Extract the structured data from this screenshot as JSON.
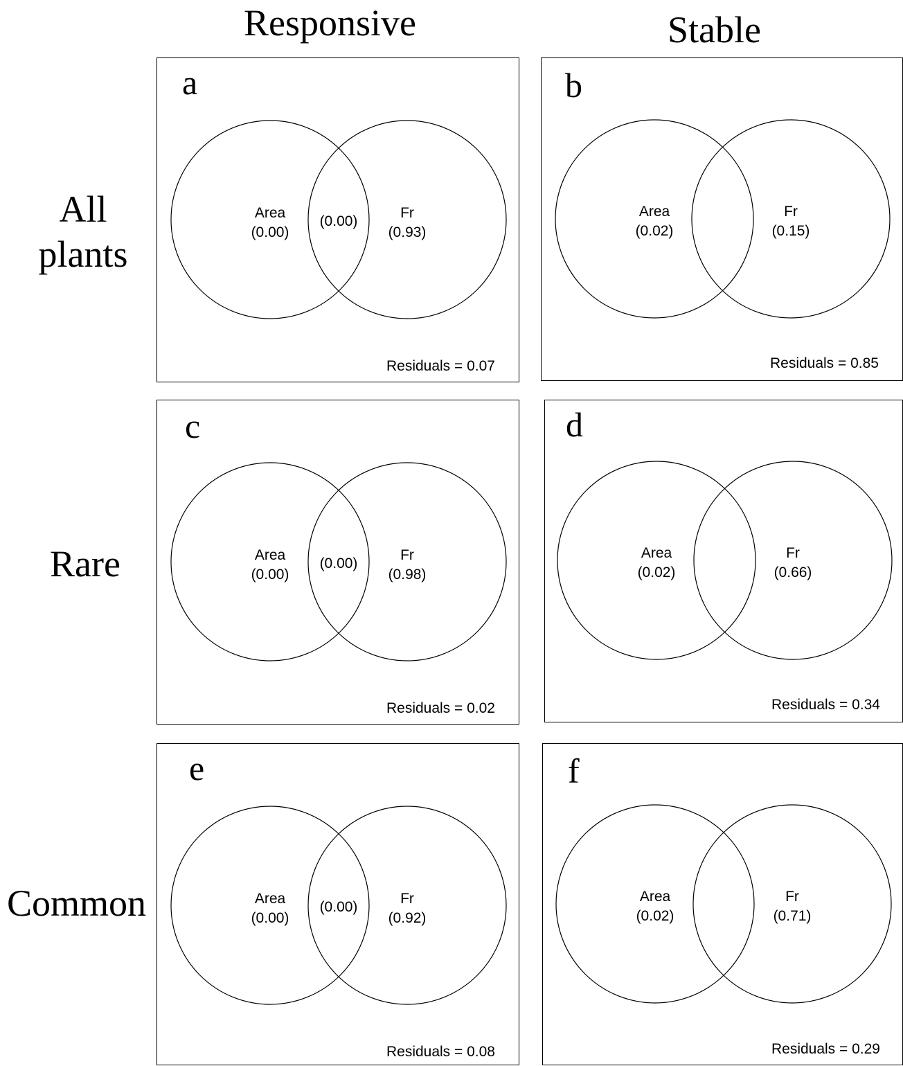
{
  "columns": [
    "Responsive",
    "Stable"
  ],
  "rows": [
    {
      "line1": "All",
      "line2": "plants"
    },
    {
      "line1": "Rare",
      "line2": ""
    },
    {
      "line1": "Common",
      "line2": ""
    }
  ],
  "panels": [
    {
      "letter": "a",
      "left": {
        "label": "Area",
        "value": "(0.00)"
      },
      "overlap": "(0.00)",
      "right": {
        "label": "Fr",
        "value": "(0.93)"
      },
      "residuals": "Residuals = 0.07"
    },
    {
      "letter": "b",
      "left": {
        "label": "Area",
        "value": "(0.02)"
      },
      "overlap": "",
      "right": {
        "label": "Fr",
        "value": "(0.15)"
      },
      "residuals": "Residuals = 0.85"
    },
    {
      "letter": "c",
      "left": {
        "label": "Area",
        "value": "(0.00)"
      },
      "overlap": "(0.00)",
      "right": {
        "label": "Fr",
        "value": "(0.98)"
      },
      "residuals": "Residuals = 0.02"
    },
    {
      "letter": "d",
      "left": {
        "label": "Area",
        "value": "(0.02)"
      },
      "overlap": "",
      "right": {
        "label": "Fr",
        "value": "(0.66)"
      },
      "residuals": "Residuals = 0.34"
    },
    {
      "letter": "e",
      "left": {
        "label": "Area",
        "value": "(0.00)"
      },
      "overlap": "(0.00)",
      "right": {
        "label": "Fr",
        "value": "(0.92)"
      },
      "residuals": "Residuals = 0.08"
    },
    {
      "letter": "f",
      "left": {
        "label": "Area",
        "value": "(0.02)"
      },
      "overlap": "",
      "right": {
        "label": "Fr",
        "value": "(0.71)"
      },
      "residuals": "Residuals = 0.29"
    }
  ]
}
